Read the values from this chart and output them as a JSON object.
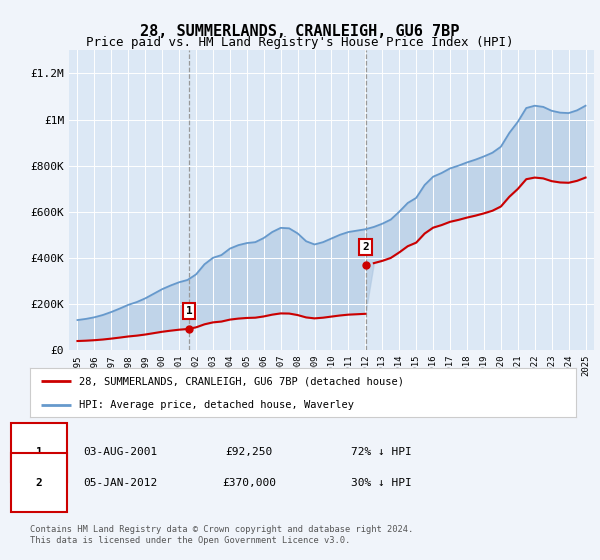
{
  "title": "28, SUMMERLANDS, CRANLEIGH, GU6 7BP",
  "subtitle": "Price paid vs. HM Land Registry's House Price Index (HPI)",
  "title_fontsize": 11,
  "subtitle_fontsize": 9,
  "background_color": "#f0f4fa",
  "plot_bg_color": "#dce8f5",
  "legend_label_red": "28, SUMMERLANDS, CRANLEIGH, GU6 7BP (detached house)",
  "legend_label_blue": "HPI: Average price, detached house, Waverley",
  "transaction1_date_x": 2001.58,
  "transaction1_price": 92250,
  "transaction1_label": "03-AUG-2001",
  "transaction1_amount": "£92,250",
  "transaction1_hpi": "72% ↓ HPI",
  "transaction2_date_x": 2012.01,
  "transaction2_price": 370000,
  "transaction2_label": "05-JAN-2012",
  "transaction2_amount": "£370,000",
  "transaction2_hpi": "30% ↓ HPI",
  "ylim": [
    0,
    1300000
  ],
  "xlim": [
    1994.5,
    2025.5
  ],
  "ylabel_ticks": [
    0,
    200000,
    400000,
    600000,
    800000,
    1000000,
    1200000
  ],
  "ylabel_labels": [
    "£0",
    "£200K",
    "£400K",
    "£600K",
    "£800K",
    "£1M",
    "£1.2M"
  ],
  "xticks": [
    1995,
    1996,
    1997,
    1998,
    1999,
    2000,
    2001,
    2002,
    2003,
    2004,
    2005,
    2006,
    2007,
    2008,
    2009,
    2010,
    2011,
    2012,
    2013,
    2014,
    2015,
    2016,
    2017,
    2018,
    2019,
    2020,
    2021,
    2022,
    2023,
    2024,
    2025
  ],
  "red_color": "#cc0000",
  "blue_color": "#6699cc",
  "fill_color": "#aac4e0",
  "footer_text": "Contains HM Land Registry data © Crown copyright and database right 2024.\nThis data is licensed under the Open Government Licence v3.0.",
  "grid_color": "#ffffff",
  "years_hpi": [
    1995.0,
    1995.5,
    1996.0,
    1996.5,
    1997.0,
    1997.5,
    1998.0,
    1998.5,
    1999.0,
    1999.5,
    2000.0,
    2000.5,
    2001.0,
    2001.5,
    2002.0,
    2002.5,
    2003.0,
    2003.5,
    2004.0,
    2004.5,
    2005.0,
    2005.5,
    2006.0,
    2006.5,
    2007.0,
    2007.5,
    2008.0,
    2008.5,
    2009.0,
    2009.5,
    2010.0,
    2010.5,
    2011.0,
    2011.5,
    2012.0,
    2012.5,
    2013.0,
    2013.5,
    2014.0,
    2014.5,
    2015.0,
    2015.5,
    2016.0,
    2016.5,
    2017.0,
    2017.5,
    2018.0,
    2018.5,
    2019.0,
    2019.5,
    2020.0,
    2020.5,
    2021.0,
    2021.5,
    2022.0,
    2022.5,
    2023.0,
    2023.5,
    2024.0,
    2024.5,
    2025.0
  ],
  "hpi_values": [
    130000,
    135000,
    142000,
    152000,
    165000,
    180000,
    196000,
    208000,
    224000,
    244000,
    264000,
    280000,
    294000,
    304000,
    328000,
    372000,
    400000,
    412000,
    440000,
    455000,
    464000,
    468000,
    486000,
    512000,
    530000,
    528000,
    506000,
    472000,
    458000,
    468000,
    484000,
    500000,
    512000,
    518000,
    524000,
    534000,
    548000,
    566000,
    600000,
    638000,
    660000,
    716000,
    752000,
    768000,
    788000,
    800000,
    814000,
    826000,
    840000,
    856000,
    882000,
    942000,
    990000,
    1050000,
    1060000,
    1055000,
    1038000,
    1030000,
    1028000,
    1040000,
    1060000
  ]
}
